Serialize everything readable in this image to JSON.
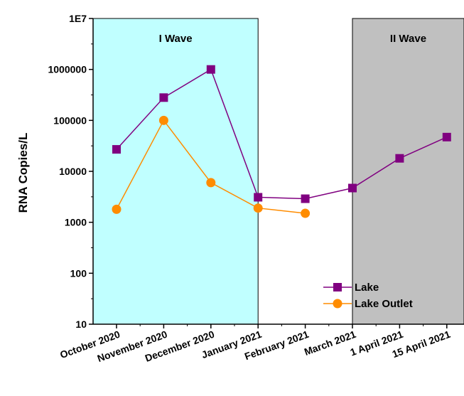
{
  "chart_data": {
    "type": "line",
    "ylabel": "RNA Copies/L",
    "xlabel": "",
    "yscale": "log",
    "ylim": [
      10,
      10000000
    ],
    "y_ticks": [
      "10",
      "100",
      "1000",
      "10000",
      "100000",
      "1000000",
      "1E7"
    ],
    "categories": [
      "October 2020",
      "November 2020",
      "December 2020",
      "January 2021",
      "February 2021",
      "March 2021",
      "1 April 2021",
      "15 April 2021"
    ],
    "series": [
      {
        "name": "Lake",
        "color": "#800080",
        "marker": "square",
        "values": [
          27000,
          280000,
          1000000,
          3100,
          2900,
          4700,
          18000,
          47000
        ]
      },
      {
        "name": "Lake Outlet",
        "color": "#ff8c00",
        "marker": "circle",
        "values": [
          1800,
          100000,
          6000,
          1900,
          1500,
          null,
          null,
          null
        ]
      }
    ],
    "regions": [
      {
        "label": "I Wave",
        "from_category": "October 2020",
        "to_category": "January 2021",
        "color": "#c0ffff"
      },
      {
        "label": "II Wave",
        "from_category": "March 2021",
        "to_category": "15 April 2021",
        "color": "#c0c0c0"
      }
    ],
    "legend": "bottom-right",
    "grid": false
  }
}
